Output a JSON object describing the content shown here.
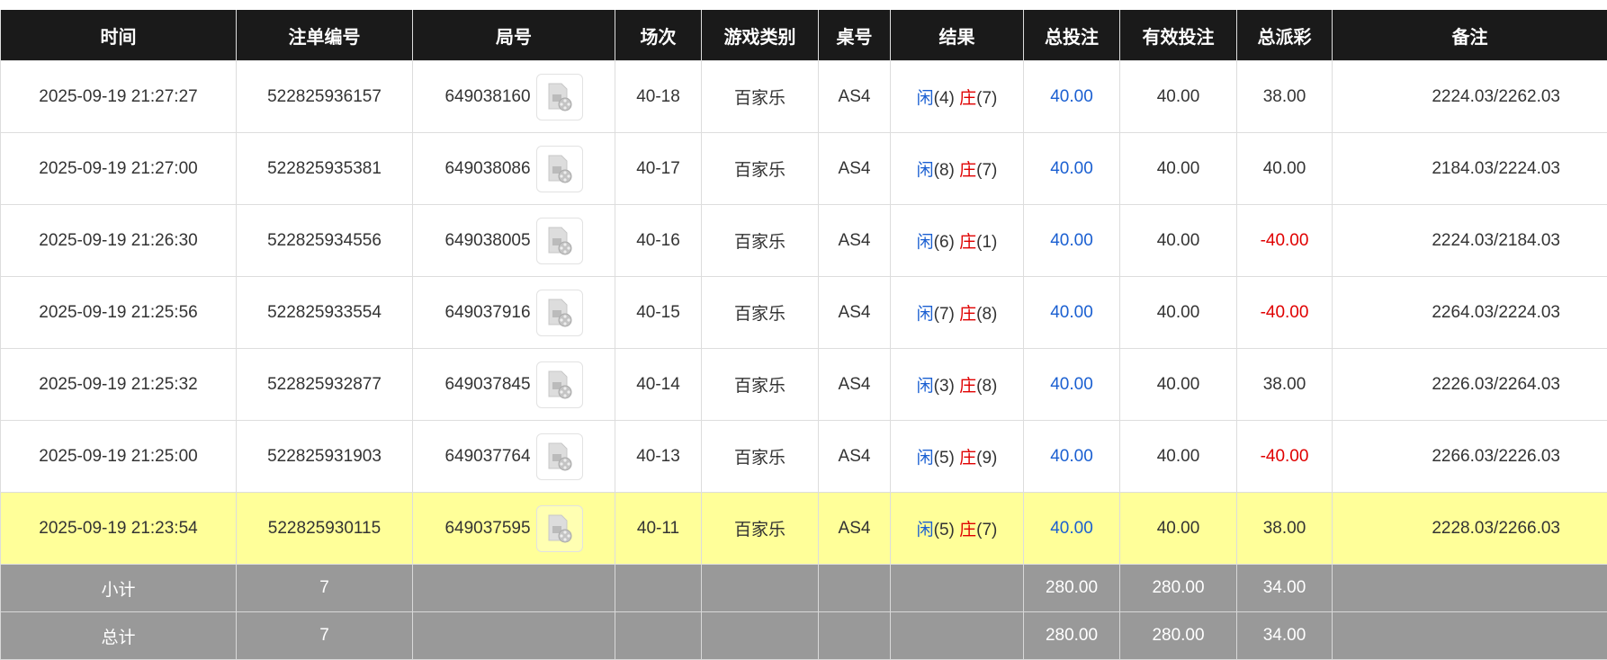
{
  "headers": [
    "时间",
    "注单编号",
    "局号",
    "场次",
    "游戏类别",
    "桌号",
    "结果",
    "总投注",
    "有效投注",
    "总派彩",
    "备注"
  ],
  "colors": {
    "player": "#1a5fd1",
    "banker": "#e00000",
    "header_bg": "#1a1a1a",
    "highlight": "#ffff99",
    "summary_bg": "#999999"
  },
  "rows": [
    {
      "time": "2025-09-19 21:27:27",
      "bet_id": "522825936157",
      "round": "649038160",
      "shoe": "40-18",
      "game": "百家乐",
      "table": "AS4",
      "player_label": "闲",
      "player": "(4)",
      "banker_label": "庄",
      "banker": "(7)",
      "total_bet": "40.00",
      "valid_bet": "40.00",
      "payout": "38.00",
      "payout_negative": false,
      "note": "2224.03/2262.03",
      "highlighted": false
    },
    {
      "time": "2025-09-19 21:27:00",
      "bet_id": "522825935381",
      "round": "649038086",
      "shoe": "40-17",
      "game": "百家乐",
      "table": "AS4",
      "player_label": "闲",
      "player": "(8)",
      "banker_label": "庄",
      "banker": "(7)",
      "total_bet": "40.00",
      "valid_bet": "40.00",
      "payout": "40.00",
      "payout_negative": false,
      "note": "2184.03/2224.03",
      "highlighted": false
    },
    {
      "time": "2025-09-19 21:26:30",
      "bet_id": "522825934556",
      "round": "649038005",
      "shoe": "40-16",
      "game": "百家乐",
      "table": "AS4",
      "player_label": "闲",
      "player": "(6)",
      "banker_label": "庄",
      "banker": "(1)",
      "total_bet": "40.00",
      "valid_bet": "40.00",
      "payout": "-40.00",
      "payout_negative": true,
      "note": "2224.03/2184.03",
      "highlighted": false
    },
    {
      "time": "2025-09-19 21:25:56",
      "bet_id": "522825933554",
      "round": "649037916",
      "shoe": "40-15",
      "game": "百家乐",
      "table": "AS4",
      "player_label": "闲",
      "player": "(7)",
      "banker_label": "庄",
      "banker": "(8)",
      "total_bet": "40.00",
      "valid_bet": "40.00",
      "payout": "-40.00",
      "payout_negative": true,
      "note": "2264.03/2224.03",
      "highlighted": false
    },
    {
      "time": "2025-09-19 21:25:32",
      "bet_id": "522825932877",
      "round": "649037845",
      "shoe": "40-14",
      "game": "百家乐",
      "table": "AS4",
      "player_label": "闲",
      "player": "(3)",
      "banker_label": "庄",
      "banker": "(8)",
      "total_bet": "40.00",
      "valid_bet": "40.00",
      "payout": "38.00",
      "payout_negative": false,
      "note": "2226.03/2264.03",
      "highlighted": false
    },
    {
      "time": "2025-09-19 21:25:00",
      "bet_id": "522825931903",
      "round": "649037764",
      "shoe": "40-13",
      "game": "百家乐",
      "table": "AS4",
      "player_label": "闲",
      "player": "(5)",
      "banker_label": "庄",
      "banker": "(9)",
      "total_bet": "40.00",
      "valid_bet": "40.00",
      "payout": "-40.00",
      "payout_negative": true,
      "note": "2266.03/2226.03",
      "highlighted": false
    },
    {
      "time": "2025-09-19 21:23:54",
      "bet_id": "522825930115",
      "round": "649037595",
      "shoe": "40-11",
      "game": "百家乐",
      "table": "AS4",
      "player_label": "闲",
      "player": "(5)",
      "banker_label": "庄",
      "banker": "(7)",
      "total_bet": "40.00",
      "valid_bet": "40.00",
      "payout": "38.00",
      "payout_negative": false,
      "note": "2228.03/2266.03",
      "highlighted": true
    }
  ],
  "summary": [
    {
      "label": "小计",
      "count": "7",
      "total_bet": "280.00",
      "valid_bet": "280.00",
      "payout": "34.00"
    },
    {
      "label": "总计",
      "count": "7",
      "total_bet": "280.00",
      "valid_bet": "280.00",
      "payout": "34.00"
    }
  ]
}
